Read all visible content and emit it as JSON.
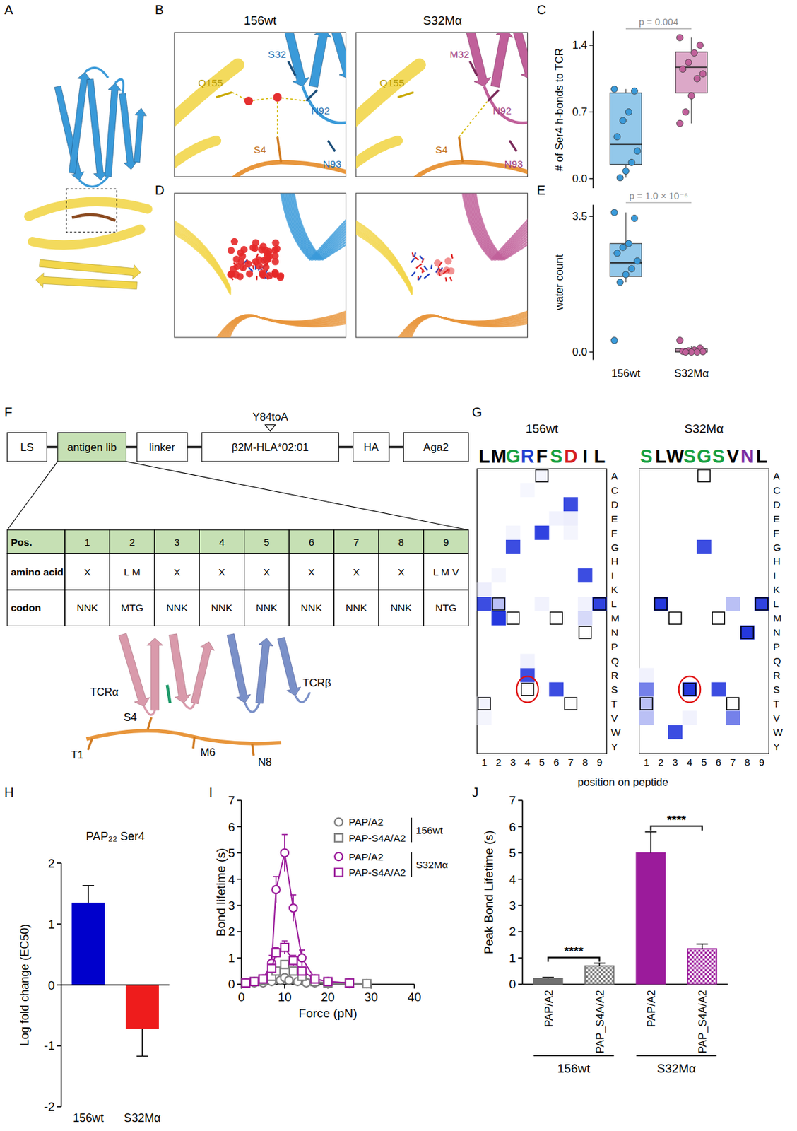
{
  "panel_labels": [
    "A",
    "B",
    "C",
    "D",
    "E",
    "F",
    "G",
    "H",
    "I",
    "J"
  ],
  "structures": {
    "titles": [
      "156wt",
      "S32Mα"
    ],
    "wt_labels": [
      "Q155",
      "S32",
      "N92",
      "N93",
      "S4"
    ],
    "mut_labels": [
      "Q155",
      "M32",
      "N92",
      "N93",
      "S4"
    ]
  },
  "construct": {
    "segments": [
      "LS",
      "antigen lib",
      "linker",
      "β2M-HLA*02:01",
      "HA",
      "Aga2"
    ],
    "mutation": "Y84toA",
    "table": {
      "rows": [
        [
          "Pos.",
          "1",
          "2",
          "3",
          "4",
          "5",
          "6",
          "7",
          "8",
          "9"
        ],
        [
          "amino acid",
          "X",
          "L M",
          "X",
          "X",
          "X",
          "X",
          "X",
          "X",
          "L M V"
        ],
        [
          "codon",
          "NNK",
          "MTG",
          "NNK",
          "NNK",
          "NNK",
          "NNK",
          "NNK",
          "NNK",
          "NTG"
        ]
      ]
    },
    "structure_labels": [
      "TCRα",
      "TCRβ",
      "S4",
      "T1",
      "M6",
      "N8"
    ]
  },
  "chart_data": [
    {
      "type": "box",
      "y_label": "# of Ser4 h-bonds to TCR",
      "categories": [
        null,
        null
      ],
      "tick_labels": "y",
      "colors": [
        "#3a9ad9",
        "#c0609a"
      ],
      "ylim": [
        -0.1,
        1.55
      ],
      "yticks": [
        {
          "value": 0,
          "label": "0.0"
        },
        {
          "value": 0.7,
          "label": "0.7"
        },
        {
          "value": 1.4,
          "label": "1.4"
        }
      ],
      "boxes": [
        {
          "min": 0.01,
          "q1": 0.15,
          "median": 0.36,
          "q3": 0.9,
          "max": 0.94
        },
        {
          "min": 0.58,
          "q1": 0.9,
          "median": 1.17,
          "q3": 1.33,
          "max": 1.48
        }
      ],
      "points": [
        [
          0.94,
          0.92,
          0.7,
          0.61,
          0.44,
          0.29,
          0.17,
          0.08,
          0.01
        ],
        [
          1.48,
          1.4,
          1.32,
          1.22,
          1.15,
          1.1,
          1.05,
          0.87,
          0.7,
          0.58
        ]
      ],
      "annotation": {
        "text": "p = 0.004",
        "pair": [
          0,
          1
        ]
      }
    },
    {
      "type": "box",
      "y_label": "water count",
      "categories": [
        "156wt",
        "S32Mα"
      ],
      "colors": [
        "#3a9ad9",
        "#c0609a"
      ],
      "ylim": [
        -0.2,
        3.8
      ],
      "yticks": [
        {
          "value": 0,
          "label": "0.0"
        },
        {
          "value": 3.5,
          "label": "3.5"
        }
      ],
      "boxes": [
        {
          "min": 1.8,
          "q1": 1.95,
          "median": 2.3,
          "q3": 2.8,
          "max": 3.6
        },
        {
          "min": 0,
          "q1": 0,
          "median": 0.03,
          "q3": 0.08,
          "max": 0.15
        }
      ],
      "points": [
        [
          3.6,
          3.45,
          2.8,
          2.7,
          2.55,
          2.35,
          2.15,
          2.0,
          1.8,
          0.3
        ],
        [
          0.3,
          0.1,
          0.05,
          0.03,
          0.02,
          0.01,
          0,
          0,
          0
        ]
      ],
      "annotation": {
        "text": "p = 1.0 × 10⁻⁶",
        "pair": [
          0,
          1
        ]
      }
    },
    {
      "type": "heatmap",
      "rows": [
        "A",
        "C",
        "D",
        "E",
        "F",
        "G",
        "H",
        "I",
        "K",
        "L",
        "M",
        "N",
        "P",
        "Q",
        "R",
        "S",
        "T",
        "V",
        "W",
        "Y"
      ],
      "columns": [
        1,
        2,
        3,
        4,
        5,
        6,
        7,
        8,
        9
      ],
      "x_label": "position on peptide",
      "native": [
        "T",
        "L",
        "M",
        "S",
        "A",
        "M",
        "T",
        "N",
        "L"
      ],
      "highlight": {
        "row": "S",
        "column": 4
      },
      "panels": [
        {
          "title": "156wt",
          "logo": "LMGRFSDIL",
          "cells": [
            [
              "L",
              1,
              0.85
            ],
            [
              "K",
              1,
              0.08
            ],
            [
              "T",
              1,
              0.06
            ],
            [
              "V",
              1,
              0.05
            ],
            [
              "M",
              2,
              0.95
            ],
            [
              "L",
              2,
              0.3
            ],
            [
              "I",
              2,
              0.05
            ],
            [
              "G",
              3,
              0.85
            ],
            [
              "F",
              3,
              0.05
            ],
            [
              "R",
              4,
              0.85
            ],
            [
              "Q",
              4,
              0.06
            ],
            [
              "C",
              4,
              0.04
            ],
            [
              "F",
              5,
              0.9
            ],
            [
              "L",
              5,
              0.06
            ],
            [
              "A",
              5,
              0.05
            ],
            [
              "S",
              6,
              0.85
            ],
            [
              "E",
              6,
              0.06
            ],
            [
              "D",
              7,
              0.85
            ],
            [
              "E",
              7,
              0.08
            ],
            [
              "F",
              7,
              0.05
            ],
            [
              "I",
              8,
              0.85
            ],
            [
              "M",
              8,
              0.18
            ],
            [
              "L",
              8,
              0.06
            ],
            [
              "L",
              9,
              0.9
            ]
          ]
        },
        {
          "title": "S32Mα",
          "logo": "SLWSGSVNL",
          "cells": [
            [
              "S",
              1,
              0.6
            ],
            [
              "T",
              1,
              0.3
            ],
            [
              "V",
              1,
              0.3
            ],
            [
              "R",
              1,
              0.06
            ],
            [
              "L",
              2,
              0.95
            ],
            [
              "W",
              3,
              0.85
            ],
            [
              "S",
              4,
              0.95
            ],
            [
              "V",
              4,
              0.06
            ],
            [
              "G",
              5,
              0.85
            ],
            [
              "S",
              6,
              0.85
            ],
            [
              "V",
              7,
              0.6
            ],
            [
              "L",
              7,
              0.3
            ],
            [
              "N",
              8,
              0.95
            ],
            [
              "L",
              9,
              0.9
            ]
          ]
        }
      ]
    },
    {
      "type": "bar",
      "title": "PAP₂₂ Ser4",
      "y_label": "Log fold change (EC50)",
      "categories": [
        "156wt",
        "S32Mα"
      ],
      "values": [
        1.35,
        -0.72
      ],
      "errors": [
        0.28,
        0.45
      ],
      "colors": [
        "#0000cc",
        "#ee1c1c"
      ],
      "ylim": [
        -2,
        2
      ],
      "yticks": [
        -2,
        -1,
        0,
        1,
        2
      ]
    },
    {
      "type": "line",
      "x_label": "Force (pN)",
      "y_label": "Bond lifetime (s)",
      "xlim": [
        0,
        40
      ],
      "xticks": [
        0,
        10,
        20,
        30,
        40
      ],
      "ylim": [
        0,
        7
      ],
      "yticks": [
        0,
        1,
        2,
        3,
        4,
        5,
        6,
        7
      ],
      "legend": "top-right",
      "series": [
        {
          "name": "PAP/A2",
          "group": "156wt",
          "color": "#808080",
          "marker": "circle",
          "x": [
            1,
            3,
            5,
            7,
            9,
            10,
            11,
            13,
            15,
            17,
            20,
            25,
            29
          ],
          "values": [
            0.05,
            0.05,
            0.05,
            0.1,
            0.15,
            0.25,
            0.15,
            0.1,
            0.05,
            0.05,
            0.02,
            0.02,
            0.02
          ],
          "errors": [
            0.02,
            0.02,
            0.02,
            0.03,
            0.05,
            0.1,
            0.05,
            0.03,
            0.02,
            0.02,
            0.01,
            0.01,
            0.01
          ]
        },
        {
          "name": "PAP-S4A/A2",
          "group": "156wt",
          "color": "#808080",
          "marker": "square",
          "x": [
            1,
            3,
            5,
            7,
            8,
            10,
            12,
            14,
            17,
            20,
            25,
            29
          ],
          "values": [
            0.05,
            0.1,
            0.15,
            0.3,
            0.5,
            0.75,
            0.5,
            0.3,
            0.1,
            0.05,
            0.05,
            0.02
          ],
          "errors": [
            0.02,
            0.03,
            0.05,
            0.08,
            0.1,
            0.12,
            0.1,
            0.08,
            0.04,
            0.02,
            0.02,
            0.01
          ]
        },
        {
          "name": "PAP/A2",
          "group": "S32Mα",
          "color": "#9b1b9b",
          "marker": "circle",
          "x": [
            1,
            3,
            5,
            7,
            8,
            10,
            12,
            14,
            17,
            20,
            25
          ],
          "values": [
            0.05,
            0.1,
            0.2,
            0.8,
            3.6,
            5.0,
            2.9,
            1.0,
            0.2,
            0.1,
            0.05
          ],
          "errors": [
            0.02,
            0.05,
            0.1,
            0.3,
            0.5,
            0.7,
            0.5,
            0.3,
            0.1,
            0.05,
            0.02
          ]
        },
        {
          "name": "PAP-S4A/A2",
          "group": "S32Mα",
          "color": "#9b1b9b",
          "marker": "square",
          "x": [
            1,
            3,
            5,
            7,
            8,
            10,
            12,
            14,
            17,
            20,
            25
          ],
          "values": [
            0.05,
            0.1,
            0.2,
            0.6,
            1.2,
            1.4,
            0.9,
            0.5,
            0.2,
            0.1,
            0.05
          ],
          "errors": [
            0.02,
            0.04,
            0.08,
            0.15,
            0.2,
            0.25,
            0.2,
            0.12,
            0.06,
            0.04,
            0.02
          ]
        }
      ]
    },
    {
      "type": "bar",
      "y_label": "Peak Bond Lifetime (s)",
      "categories": [
        "PAP/A2",
        "PAP_S4A/A2",
        "PAP/A2",
        "PAP_S4A/A2"
      ],
      "values": [
        0.22,
        0.7,
        5.0,
        1.35
      ],
      "errors": [
        0.04,
        0.1,
        0.8,
        0.18
      ],
      "colors": [
        "#707070",
        "#707070",
        "#9b1b9b",
        "#9b1b9b"
      ],
      "group_labels": [
        "156wt",
        "S32Mα"
      ],
      "significance": [
        {
          "pair": [
            0,
            1
          ],
          "label": "****"
        },
        {
          "pair": [
            2,
            3
          ],
          "label": "****"
        }
      ],
      "ylim": [
        0,
        7
      ],
      "yticks": [
        0,
        1,
        2,
        3,
        4,
        5,
        6,
        7
      ]
    }
  ]
}
